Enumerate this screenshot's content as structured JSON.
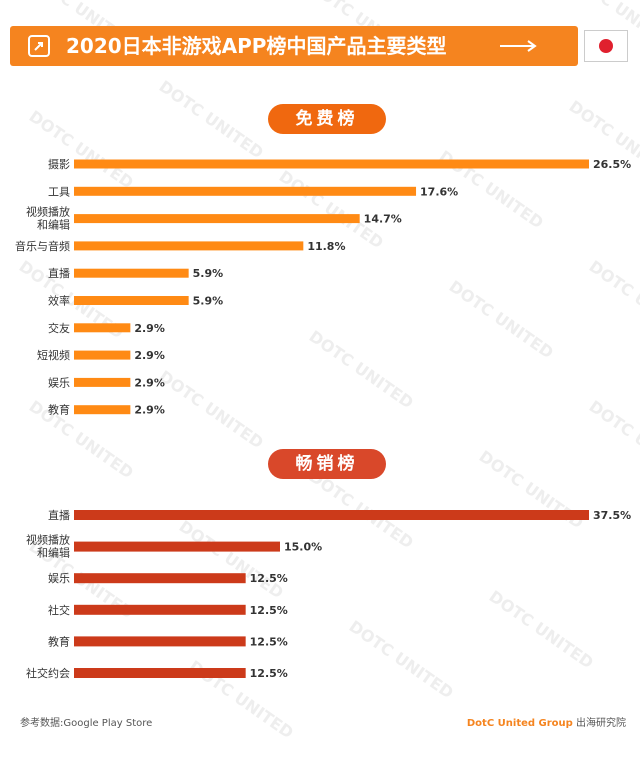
{
  "header": {
    "title": "2020日本非游戏APP榜中国产品主要类型",
    "icon": "share-icon",
    "flag": "japan-flag"
  },
  "free_section": {
    "label": "免费榜"
  },
  "grossing_section": {
    "label": "畅销榜"
  },
  "chart_data": [
    {
      "type": "bar",
      "orientation": "horizontal",
      "title": "免费榜",
      "categories": [
        "摄影",
        "工具",
        "视频播放\n和编辑",
        "音乐与音频",
        "直播",
        "效率",
        "交友",
        "短视频",
        "娱乐",
        "教育"
      ],
      "values": [
        26.5,
        17.6,
        14.7,
        11.8,
        5.9,
        5.9,
        2.9,
        2.9,
        2.9,
        2.9
      ],
      "labels": [
        "26.5%",
        "17.6%",
        "14.7%",
        "11.8%",
        "5.9%",
        "5.9%",
        "2.9%",
        "2.9%",
        "2.9%",
        "2.9%"
      ],
      "unit": "%",
      "color": "#ff8a14",
      "xlim": [
        0,
        26.5
      ]
    },
    {
      "type": "bar",
      "orientation": "horizontal",
      "title": "畅销榜",
      "categories": [
        "直播",
        "视频播放\n和编辑",
        "娱乐",
        "社交",
        "教育",
        "社交约会"
      ],
      "values": [
        37.5,
        15.0,
        12.5,
        12.5,
        12.5,
        12.5
      ],
      "labels": [
        "37.5%",
        "15.0%",
        "12.5%",
        "12.5%",
        "12.5%",
        "12.5%"
      ],
      "unit": "%",
      "color": "#cc3a1a",
      "xlim": [
        0,
        37.5
      ]
    }
  ],
  "footer": {
    "source": "参考数据:Google Play Store",
    "brand": "DotC United Group",
    "brand_suffix": "出海研究院"
  },
  "watermark": "DOTC UNITED"
}
